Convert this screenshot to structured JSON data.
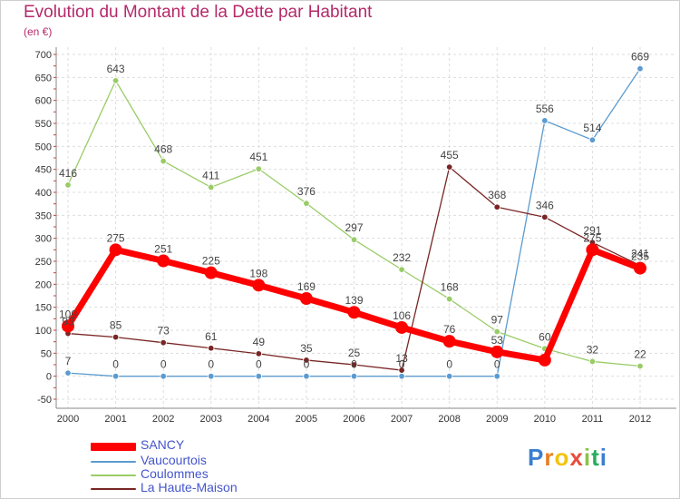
{
  "chart_data": {
    "type": "line",
    "title": "Evolution du Montant de la Dette par Habitant",
    "subtitle": "(en €)",
    "categories": [
      "2000",
      "2001",
      "2002",
      "2003",
      "2004",
      "2005",
      "2006",
      "2007",
      "2008",
      "2009",
      "2010",
      "2011",
      "2012"
    ],
    "ylim": [
      -50,
      700
    ],
    "yticks": [
      -50,
      0,
      50,
      100,
      150,
      200,
      250,
      300,
      350,
      400,
      450,
      500,
      550,
      600,
      650,
      700
    ],
    "grid": true,
    "legend_position": "bottom-left",
    "series": [
      {
        "name": "SANCY",
        "color": "#ff0000",
        "values": [
          109,
          275,
          251,
          225,
          198,
          169,
          139,
          106,
          76,
          53,
          35,
          275,
          235
        ],
        "labels": [
          "109",
          "275",
          "251",
          "225",
          "198",
          "169",
          "139",
          "106",
          "76",
          "53",
          "",
          "275",
          "235"
        ]
      },
      {
        "name": "Vaucourtois",
        "color": "#5b9bd0",
        "values": [
          7,
          0,
          0,
          0,
          0,
          0,
          0,
          0,
          0,
          0,
          556,
          514,
          669
        ],
        "labels": [
          "7",
          "0",
          "0",
          "0",
          "0",
          "0",
          "0",
          "0",
          "0",
          "0",
          "556",
          "514",
          "669"
        ]
      },
      {
        "name": "Coulommes",
        "color": "#99cc66",
        "values": [
          416,
          643,
          468,
          411,
          451,
          376,
          297,
          232,
          168,
          97,
          60,
          32,
          22
        ],
        "labels": [
          "416",
          "643",
          "468",
          "411",
          "451",
          "376",
          "297",
          "232",
          "168",
          "97",
          "60",
          "32",
          "22"
        ]
      },
      {
        "name": "La Haute-Maison",
        "color": "#7a2525",
        "values": [
          93,
          85,
          73,
          61,
          49,
          35,
          25,
          13,
          455,
          368,
          346,
          291,
          241
        ],
        "labels": [
          "93",
          "85",
          "73",
          "61",
          "49",
          "35",
          "25",
          "13",
          "455",
          "368",
          "346",
          "291",
          "241"
        ]
      }
    ]
  },
  "logo": {
    "letters": [
      "P",
      "r",
      "o",
      "x",
      "i",
      "t",
      "i"
    ],
    "colors": [
      "#3a7fd0",
      "#e67e22",
      "#f1c40f",
      "#e74c3c",
      "#8bc34a",
      "#27ae60",
      "#3a7fd0"
    ]
  }
}
